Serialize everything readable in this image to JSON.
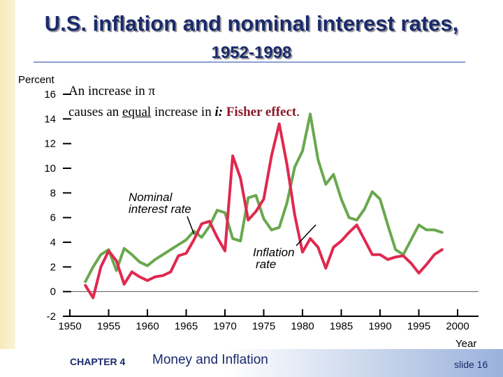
{
  "slide": {
    "title_line1": "U.S. inflation and nominal interest rates,",
    "title_line2": "1952-1998",
    "footer_chapter": "CHAPTER 4",
    "footer_topic": "Money and Inflation",
    "footer_slide": "slide 16"
  },
  "caption": {
    "line1_prefix": "An increase in",
    "line1_symbol": "π",
    "line2_a": "causes an",
    "line2_equal": "equal",
    "line2_b": "increase in",
    "line2_i": "i:",
    "line2_fisher": "Fisher effect",
    "line2_end": ".",
    "fisher_color": "#8b1a2a"
  },
  "annotations": {
    "nominal_line1": "Nominal",
    "nominal_line2": "interest rate",
    "inflation_line1": "Inflation",
    "inflation_line2": "rate"
  },
  "chart_data": {
    "type": "line",
    "ylabel": "Percent",
    "xlabel": "Year",
    "xlim": [
      1950,
      2000
    ],
    "ylim": [
      -2,
      16
    ],
    "x_ticks": [
      1950,
      1955,
      1960,
      1965,
      1970,
      1975,
      1980,
      1985,
      1990,
      1995,
      2000
    ],
    "y_ticks": [
      -2,
      0,
      2,
      4,
      6,
      8,
      10,
      12,
      14,
      16
    ],
    "series": [
      {
        "name": "Nominal interest rate",
        "color": "#6aa84f",
        "x": [
          1952,
          1953,
          1954,
          1955,
          1956,
          1957,
          1958,
          1959,
          1960,
          1961,
          1962,
          1963,
          1964,
          1965,
          1966,
          1967,
          1968,
          1969,
          1970,
          1971,
          1972,
          1973,
          1974,
          1975,
          1976,
          1977,
          1978,
          1979,
          1980,
          1981,
          1982,
          1983,
          1984,
          1985,
          1986,
          1987,
          1988,
          1989,
          1990,
          1991,
          1992,
          1993,
          1994,
          1995,
          1996,
          1997,
          1998
        ],
        "values": [
          0.8,
          2.0,
          3.0,
          3.4,
          1.7,
          3.5,
          3.0,
          2.4,
          2.1,
          2.6,
          3.0,
          3.4,
          3.8,
          4.2,
          4.9,
          4.4,
          5.3,
          6.6,
          6.4,
          4.3,
          4.1,
          7.6,
          7.8,
          5.9,
          5.0,
          5.2,
          7.2,
          10.1,
          11.4,
          14.4,
          10.7,
          8.7,
          9.5,
          7.5,
          6.0,
          5.8,
          6.7,
          8.1,
          7.5,
          5.4,
          3.4,
          3.0,
          4.2,
          5.4,
          5.0,
          5.0,
          4.8
        ]
      },
      {
        "name": "Inflation rate",
        "color": "#e0284f",
        "x": [
          1952,
          1953,
          1954,
          1955,
          1956,
          1957,
          1958,
          1959,
          1960,
          1961,
          1962,
          1963,
          1964,
          1965,
          1966,
          1967,
          1968,
          1969,
          1970,
          1971,
          1972,
          1973,
          1974,
          1975,
          1976,
          1977,
          1978,
          1979,
          1980,
          1981,
          1982,
          1983,
          1984,
          1985,
          1986,
          1987,
          1988,
          1989,
          1990,
          1991,
          1992,
          1993,
          1994,
          1995,
          1996,
          1997,
          1998
        ],
        "values": [
          0.5,
          -0.5,
          2.0,
          3.3,
          2.5,
          0.6,
          1.6,
          1.2,
          0.9,
          1.2,
          1.3,
          1.6,
          2.9,
          3.1,
          4.2,
          5.5,
          5.7,
          4.4,
          3.3,
          11.0,
          9.2,
          5.8,
          6.5,
          7.5,
          11.0,
          13.6,
          10.3,
          6.2,
          3.2,
          4.3,
          3.6,
          1.9,
          3.6,
          4.1,
          4.8,
          5.4,
          4.2,
          3.0,
          3.0,
          2.6,
          2.8,
          2.9,
          2.3,
          1.5,
          2.2,
          3.0,
          3.4
        ]
      }
    ]
  }
}
